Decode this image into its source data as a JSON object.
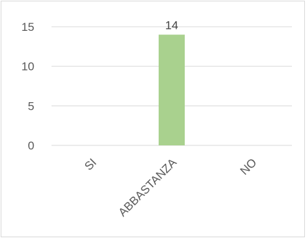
{
  "chart_data": {
    "type": "bar",
    "categories": [
      "SI",
      "ABBASTANZA",
      "NO"
    ],
    "values": [
      0,
      14,
      0
    ],
    "data_labels": [
      null,
      "14",
      null
    ],
    "title": "",
    "xlabel": "",
    "ylabel": "",
    "ylim": [
      0,
      15
    ],
    "yticks": [
      0,
      5,
      10,
      15
    ],
    "grid": true,
    "legend": "none",
    "bar_color": "#a9d18e",
    "gridline_color": "#d9d9d9",
    "text_color": "#595959"
  }
}
